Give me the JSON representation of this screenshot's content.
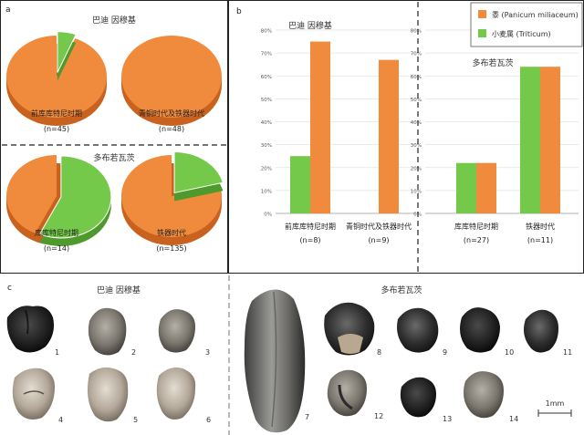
{
  "colors": {
    "millet": "#f08a3c",
    "wheat": "#74c84a",
    "millet_side": "#c9621f",
    "wheat_side": "#4f9a2c"
  },
  "panel_letters": {
    "a": "a",
    "b": "b",
    "c": "c"
  },
  "legend": {
    "items": [
      {
        "label": "黍 (Panicum miliaceum)",
        "color": "#f08a3c"
      },
      {
        "label": "小麦属 (Triticum)",
        "color": "#74c84a"
      }
    ]
  },
  "chart_data": [
    {
      "type": "pie",
      "panel": "a",
      "group": "巴迪 因穆基",
      "label": "前库库特尼时期",
      "n_label": "(n=45)",
      "series": [
        {
          "name": "黍 (Panicum miliaceum)",
          "value": 94
        },
        {
          "name": "小麦属 (Triticum)",
          "value": 6
        }
      ]
    },
    {
      "type": "pie",
      "panel": "a",
      "group": "巴迪 因穆基",
      "label": "青铜时代及铁器时代",
      "n_label": "(n=48)",
      "series": [
        {
          "name": "黍 (Panicum miliaceum)",
          "value": 100
        },
        {
          "name": "小麦属 (Triticum)",
          "value": 0
        }
      ]
    },
    {
      "type": "pie",
      "panel": "a",
      "group": "多布若瓦茨",
      "label": "库库特尼时期",
      "n_label": "(n=14)",
      "series": [
        {
          "name": "黍 (Panicum miliaceum)",
          "value": 43
        },
        {
          "name": "小麦属 (Triticum)",
          "value": 57
        }
      ]
    },
    {
      "type": "pie",
      "panel": "a",
      "group": "多布若瓦茨",
      "label": "铁器时代",
      "n_label": "(n=135)",
      "series": [
        {
          "name": "黍 (Panicum miliaceum)",
          "value": 79
        },
        {
          "name": "小麦属 (Triticum)",
          "value": 21
        }
      ]
    },
    {
      "type": "bar",
      "panel": "b",
      "ylim": [
        0,
        80
      ],
      "yticks": [
        "0%",
        "10%",
        "20%",
        "30%",
        "40%",
        "50%",
        "60%",
        "70%",
        "80%"
      ],
      "groups": [
        {
          "site": "巴迪 因穆基",
          "categories": [
            {
              "label": "前库库特尼时期",
              "n_label": "(n=8)",
              "wheat": 25,
              "millet": 75
            },
            {
              "label": "青铜时代及铁器时代",
              "n_label": "(n=9)",
              "wheat": 0,
              "millet": 67
            }
          ]
        },
        {
          "site": "多布若瓦茨",
          "categories": [
            {
              "label": "库库特尼时期",
              "n_label": "(n=27)",
              "wheat": 22,
              "millet": 22
            },
            {
              "label": "铁器时代",
              "n_label": "(n=11)",
              "wheat": 64,
              "millet": 64
            }
          ]
        }
      ]
    }
  ],
  "photos": {
    "site_left": "巴迪 因穆基",
    "site_right": "多布若瓦茨",
    "scale_label": "1mm",
    "specimens": [
      "1",
      "2",
      "3",
      "4",
      "5",
      "6",
      "7",
      "8",
      "9",
      "10",
      "11",
      "12",
      "13",
      "14"
    ]
  }
}
